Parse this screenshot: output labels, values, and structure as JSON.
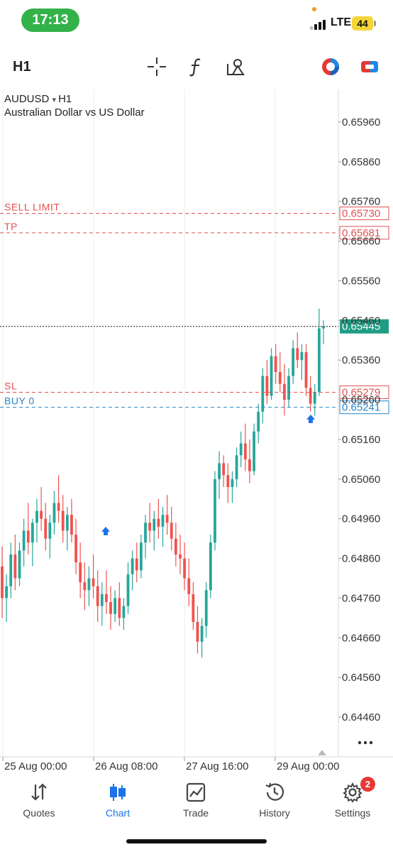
{
  "status_bar": {
    "time": "17:13",
    "network": "LTE",
    "battery": "44"
  },
  "toolbar": {
    "timeframe": "H1",
    "icons": [
      "crosshair-icon",
      "function-icon",
      "objects-icon",
      "color-palette-icon",
      "trade-toggle-icon"
    ]
  },
  "chart": {
    "symbol": "AUDUSD",
    "symbol_tf": "H1",
    "description": "Australian Dollar vs US Dollar",
    "price_ticks": [
      "0.65960",
      "0.65860",
      "0.65760",
      "0.65660",
      "0.65560",
      "0.65460",
      "0.65360",
      "0.65260",
      "0.65160",
      "0.65060",
      "0.64960",
      "0.64860",
      "0.64760",
      "0.64660",
      "0.64560",
      "0.64460"
    ],
    "time_labels": [
      "25 Aug 00:00",
      "26 Aug 08:00",
      "27 Aug 16:00",
      "29 Aug 00:00"
    ],
    "order_lines": [
      {
        "label": "SELL LIMIT",
        "price": "0.65730",
        "color": "#e05252"
      },
      {
        "label": "TP",
        "price": "0.65681",
        "color": "#e05252"
      },
      {
        "label": "SL",
        "price": "0.65279",
        "color": "#e05252"
      },
      {
        "label": "BUY 0",
        "price": "0.65241",
        "color": "#2a86c9"
      }
    ],
    "current_price": "0.65445",
    "colors": {
      "bull": "#26a69a",
      "bear": "#ef5350",
      "current": "#1f9c85",
      "sell": "#e05252",
      "buy": "#2a86c9"
    }
  },
  "chart_data": {
    "type": "candlestick",
    "symbol": "AUDUSD",
    "timeframe": "H1",
    "ylim": [
      0.6441,
      0.6603
    ],
    "candles": [
      [
        0.6484,
        0.6489,
        0.6471,
        0.6476
      ],
      [
        0.6476,
        0.6482,
        0.647,
        0.6479
      ],
      [
        0.6479,
        0.649,
        0.6476,
        0.6487
      ],
      [
        0.6487,
        0.6492,
        0.6478,
        0.6481
      ],
      [
        0.6481,
        0.649,
        0.6479,
        0.6488
      ],
      [
        0.6488,
        0.6496,
        0.6484,
        0.6493
      ],
      [
        0.6493,
        0.65,
        0.6487,
        0.649
      ],
      [
        0.649,
        0.6496,
        0.6484,
        0.6495
      ],
      [
        0.6495,
        0.6501,
        0.649,
        0.6498
      ],
      [
        0.6498,
        0.6504,
        0.6493,
        0.6496
      ],
      [
        0.6496,
        0.65,
        0.6488,
        0.6491
      ],
      [
        0.6491,
        0.6497,
        0.6486,
        0.6495
      ],
      [
        0.6495,
        0.6503,
        0.6492,
        0.65
      ],
      [
        0.65,
        0.6507,
        0.6495,
        0.6498
      ],
      [
        0.6498,
        0.6502,
        0.649,
        0.6493
      ],
      [
        0.6493,
        0.6499,
        0.6488,
        0.6497
      ],
      [
        0.6497,
        0.6501,
        0.649,
        0.6492
      ],
      [
        0.6492,
        0.6496,
        0.6482,
        0.6485
      ],
      [
        0.6485,
        0.649,
        0.6476,
        0.648
      ],
      [
        0.648,
        0.6485,
        0.6473,
        0.6478
      ],
      [
        0.6478,
        0.6484,
        0.6474,
        0.6481
      ],
      [
        0.6481,
        0.6487,
        0.6476,
        0.6479
      ],
      [
        0.6479,
        0.6483,
        0.647,
        0.6474
      ],
      [
        0.6474,
        0.648,
        0.6469,
        0.6477
      ],
      [
        0.6477,
        0.6483,
        0.6472,
        0.6475
      ],
      [
        0.6475,
        0.6479,
        0.6468,
        0.6472
      ],
      [
        0.6472,
        0.6478,
        0.647,
        0.6476
      ],
      [
        0.6476,
        0.648,
        0.6469,
        0.6471
      ],
      [
        0.6471,
        0.6476,
        0.6468,
        0.6474
      ],
      [
        0.6474,
        0.6485,
        0.6472,
        0.6482
      ],
      [
        0.6482,
        0.6488,
        0.6478,
        0.6486
      ],
      [
        0.6486,
        0.649,
        0.648,
        0.6483
      ],
      [
        0.6483,
        0.6492,
        0.6481,
        0.649
      ],
      [
        0.649,
        0.6497,
        0.6486,
        0.6495
      ],
      [
        0.6495,
        0.65,
        0.649,
        0.6493
      ],
      [
        0.6493,
        0.6498,
        0.6488,
        0.6496
      ],
      [
        0.6496,
        0.6501,
        0.6491,
        0.6494
      ],
      [
        0.6494,
        0.6499,
        0.6489,
        0.6497
      ],
      [
        0.6497,
        0.6502,
        0.6492,
        0.6495
      ],
      [
        0.6495,
        0.6499,
        0.6488,
        0.6491
      ],
      [
        0.6491,
        0.6495,
        0.6484,
        0.6487
      ],
      [
        0.6487,
        0.6492,
        0.6482,
        0.6486
      ],
      [
        0.6486,
        0.649,
        0.6478,
        0.6481
      ],
      [
        0.6481,
        0.6486,
        0.6474,
        0.6477
      ],
      [
        0.6477,
        0.648,
        0.6468,
        0.647
      ],
      [
        0.647,
        0.6474,
        0.6462,
        0.6465
      ],
      [
        0.6465,
        0.6471,
        0.6461,
        0.6469
      ],
      [
        0.6469,
        0.648,
        0.6466,
        0.6478
      ],
      [
        0.6478,
        0.6492,
        0.6476,
        0.649
      ],
      [
        0.649,
        0.6508,
        0.6488,
        0.6506
      ],
      [
        0.6506,
        0.6513,
        0.6501,
        0.651
      ],
      [
        0.651,
        0.6512,
        0.6504,
        0.6507
      ],
      [
        0.6507,
        0.651,
        0.65,
        0.6504
      ],
      [
        0.6504,
        0.6508,
        0.65,
        0.6506
      ],
      [
        0.6506,
        0.6514,
        0.6504,
        0.6512
      ],
      [
        0.6512,
        0.6518,
        0.6509,
        0.6515
      ],
      [
        0.6515,
        0.652,
        0.6508,
        0.6511
      ],
      [
        0.6511,
        0.6516,
        0.6505,
        0.6508
      ],
      [
        0.6508,
        0.652,
        0.6507,
        0.6518
      ],
      [
        0.6518,
        0.6525,
        0.6515,
        0.6523
      ],
      [
        0.6523,
        0.6534,
        0.652,
        0.6532
      ],
      [
        0.6532,
        0.6536,
        0.6525,
        0.6527
      ],
      [
        0.6527,
        0.6539,
        0.6526,
        0.6537
      ],
      [
        0.6537,
        0.654,
        0.653,
        0.6533
      ],
      [
        0.6533,
        0.6538,
        0.6528,
        0.653
      ],
      [
        0.653,
        0.6535,
        0.6522,
        0.6526
      ],
      [
        0.6526,
        0.6534,
        0.6524,
        0.6532
      ],
      [
        0.6532,
        0.6541,
        0.653,
        0.6539
      ],
      [
        0.6539,
        0.6543,
        0.6534,
        0.6536
      ],
      [
        0.6536,
        0.654,
        0.6531,
        0.6538
      ],
      [
        0.6538,
        0.654,
        0.6527,
        0.6529
      ],
      [
        0.6529,
        0.6532,
        0.6523,
        0.6525
      ],
      [
        0.6525,
        0.653,
        0.6522,
        0.6528
      ],
      [
        0.6528,
        0.6549,
        0.6527,
        0.6544
      ],
      [
        0.6544,
        0.6546,
        0.654,
        0.65445
      ]
    ]
  }
}
